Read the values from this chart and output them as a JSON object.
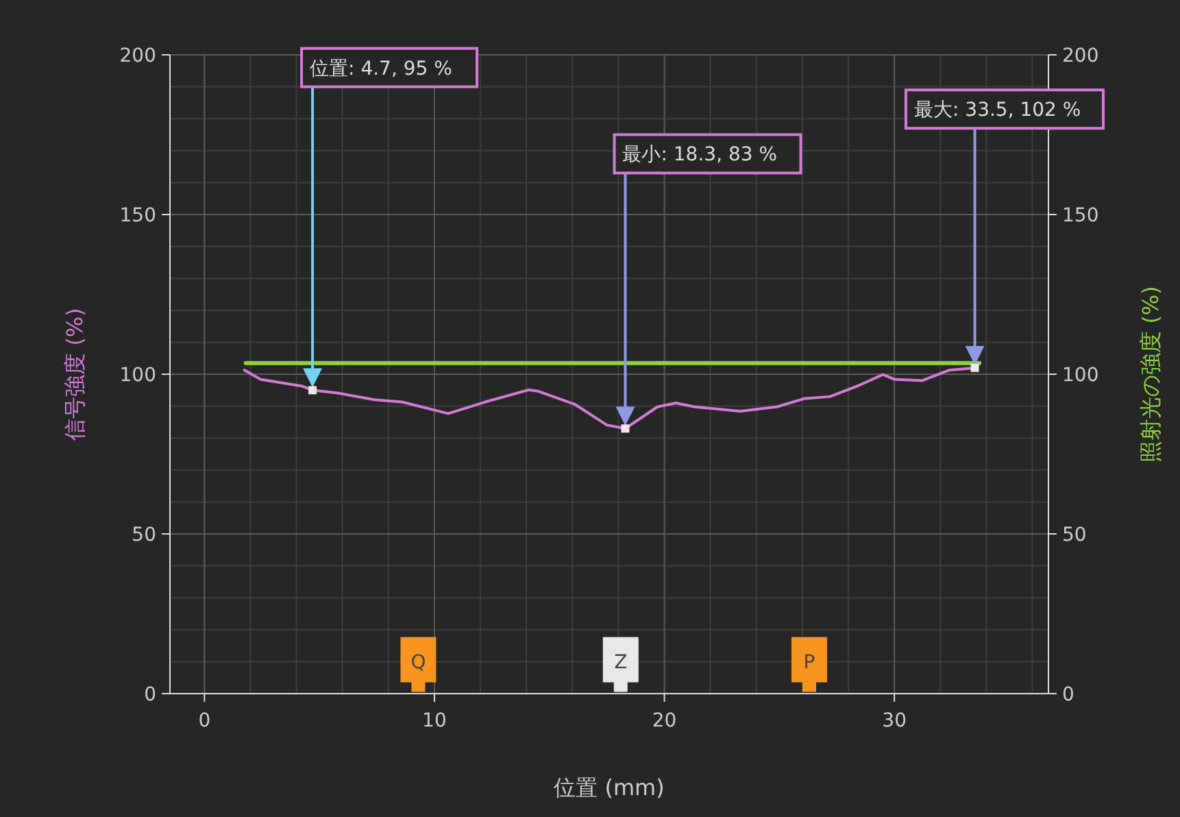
{
  "chart_data": {
    "type": "line",
    "xlabel": "位置 (mm)",
    "ylabel": "信号強度 (%)",
    "y2label": "照射光の強度 (%)",
    "xlim": [
      -1.5,
      36.7
    ],
    "xticks": [
      0,
      10,
      20,
      30
    ],
    "ylim": [
      0,
      200
    ],
    "yticks": [
      0,
      50,
      100,
      150,
      200
    ],
    "y2lim": [
      0,
      200
    ],
    "y2ticks": [
      0,
      50,
      100,
      150,
      200
    ],
    "grid": true,
    "line_style": "solid",
    "series": [
      {
        "color": "#d27ad6",
        "x": [
          1.74,
          2.44,
          4.23,
          4.7,
          5.81,
          7.4,
          8.6,
          10.6,
          12.2,
          14.1,
          14.5,
          16.1,
          17.5,
          18.3,
          19.7,
          20.5,
          21.3,
          23.3,
          24.9,
          26.1,
          27.2,
          28.4,
          29.5,
          30.0,
          31.2,
          32.4,
          33.5
        ],
        "values": [
          101.3,
          98.4,
          96.3,
          95,
          94.1,
          92,
          91.3,
          87.7,
          91.3,
          95.1,
          94.7,
          90.6,
          84.1,
          83,
          89.8,
          91,
          89.8,
          88.4,
          89.8,
          92.4,
          93,
          96.3,
          99.9,
          98.4,
          98,
          101.3,
          102
        ]
      },
      {
        "color": "#8dd13f",
        "axis": "y2",
        "x": [
          1.8,
          33.7
        ],
        "values": [
          103.5,
          103.5
        ]
      },
      {
        "type": "scatter",
        "x": [
          9.3,
          18.1,
          26.3
        ],
        "values": [
          10,
          10,
          10
        ],
        "colors": [
          "#f7941d",
          "#e8e8e8",
          "#f7941d"
        ],
        "value_labels": [
          "Q",
          "Z",
          "P"
        ]
      },
      {
        "type": "scatter",
        "marker": "square",
        "color": "#f0e6e6",
        "x": [
          4.7,
          18.3,
          33.5
        ],
        "values": [
          95,
          83,
          102
        ]
      }
    ],
    "annotations": [
      "位置: 4.7, 95 %",
      "最小: 18.3, 83 %",
      "最大: 33.5, 102 %"
    ]
  }
}
